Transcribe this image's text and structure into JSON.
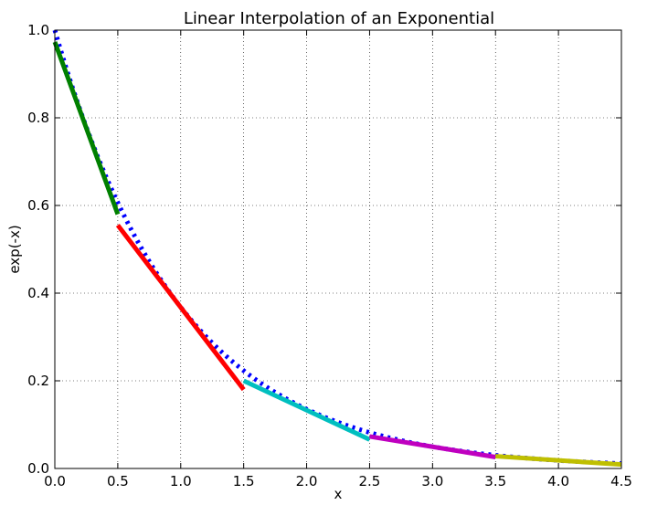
{
  "chart_data": {
    "type": "line",
    "title": "Linear Interpolation of an Exponential",
    "xlabel": "x",
    "ylabel": "exp(-x)",
    "xlim": [
      0,
      4.5
    ],
    "ylim": [
      0,
      1.0
    ],
    "grid": true,
    "x_ticks": [
      "0.0",
      "0.5",
      "1.0",
      "1.5",
      "2.0",
      "2.5",
      "3.0",
      "3.5",
      "4.0",
      "4.5"
    ],
    "y_ticks": [
      "0.0",
      "0.2",
      "0.4",
      "0.6",
      "0.8",
      "1.0"
    ],
    "reference_curve": {
      "function": "exp(-x)",
      "x_range": [
        0,
        4.5
      ],
      "color": "#0000ff",
      "style": "dotted"
    },
    "series": [
      {
        "color": "#008000",
        "x": [
          0.0,
          0.5
        ],
        "y": [
          0.973,
          0.58
        ]
      },
      {
        "color": "#ff0000",
        "x": [
          0.5,
          1.5
        ],
        "y": [
          0.555,
          0.18
        ]
      },
      {
        "color": "#00bfbf",
        "x": [
          1.5,
          2.5
        ],
        "y": [
          0.2,
          0.066
        ]
      },
      {
        "color": "#bf00bf",
        "x": [
          2.5,
          3.5
        ],
        "y": [
          0.073,
          0.026
        ]
      },
      {
        "color": "#bfbf00",
        "x": [
          3.5,
          4.5
        ],
        "y": [
          0.028,
          0.009
        ]
      }
    ]
  }
}
